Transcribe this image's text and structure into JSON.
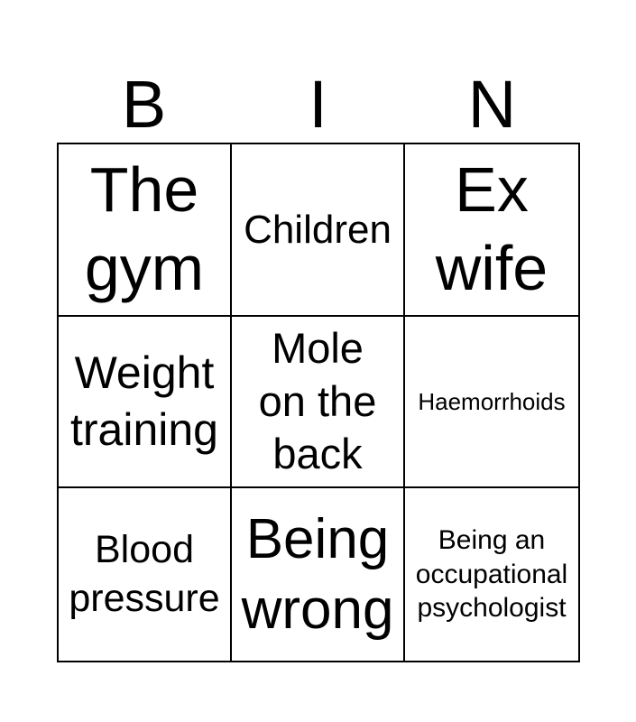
{
  "page": {
    "background_color": "#ffffff",
    "text_color": "#000000",
    "border_color": "#000000"
  },
  "bingo": {
    "header_letters": [
      "B",
      "I",
      "N"
    ],
    "grid": {
      "rows": 3,
      "cols": 3,
      "cells": [
        {
          "text": "The\ngym"
        },
        {
          "text": "Children"
        },
        {
          "text": "Ex\nwife"
        },
        {
          "text": "Weight\ntraining"
        },
        {
          "text": "Mole\non the\nback"
        },
        {
          "text": "Haemorrhoids"
        },
        {
          "text": "Blood\npressure"
        },
        {
          "text": "Being\nwrong"
        },
        {
          "text": "Being an\noccupational\npsychologist"
        }
      ]
    }
  }
}
